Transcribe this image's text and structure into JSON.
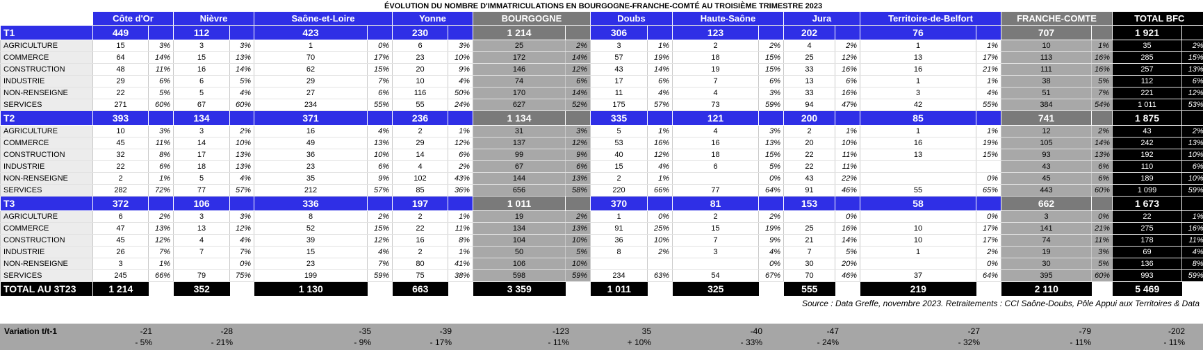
{
  "title": "ÉVOLUTION DU NOMBRE D'IMMATRICULATIONS EN BOURGOGNE-FRANCHE-COMTÉ AU TROISIÈME TRIMESTRE 2023",
  "headers": [
    "Côte d'Or",
    "Nièvre",
    "Saône-et-Loire",
    "Yonne",
    "BOURGOGNE",
    "Doubs",
    "Haute-Saône",
    "Jura",
    "Territoire-de-Belfort",
    "FRANCHE-COMTE",
    "TOTAL BFC"
  ],
  "quarters": [
    {
      "label": "T1",
      "totals": [
        "449",
        "112",
        "423",
        "230",
        "1 214",
        "306",
        "123",
        "202",
        "76",
        "707",
        "1 921"
      ],
      "rows": [
        {
          "label": "AGRICULTURE",
          "cells": [
            [
              "15",
              "3%"
            ],
            [
              "3",
              "3%"
            ],
            [
              "1",
              "0%"
            ],
            [
              "6",
              "3%"
            ],
            [
              "25",
              "2%"
            ],
            [
              "3",
              "1%"
            ],
            [
              "2",
              "2%"
            ],
            [
              "4",
              "2%"
            ],
            [
              "1",
              "1%"
            ],
            [
              "10",
              "1%"
            ],
            [
              "35",
              "2%"
            ]
          ]
        },
        {
          "label": "COMMERCE",
          "cells": [
            [
              "64",
              "14%"
            ],
            [
              "15",
              "13%"
            ],
            [
              "70",
              "17%"
            ],
            [
              "23",
              "10%"
            ],
            [
              "172",
              "14%"
            ],
            [
              "57",
              "19%"
            ],
            [
              "18",
              "15%"
            ],
            [
              "25",
              "12%"
            ],
            [
              "13",
              "17%"
            ],
            [
              "113",
              "16%"
            ],
            [
              "285",
              "15%"
            ]
          ]
        },
        {
          "label": "CONSTRUCTION",
          "cells": [
            [
              "48",
              "11%"
            ],
            [
              "16",
              "14%"
            ],
            [
              "62",
              "15%"
            ],
            [
              "20",
              "9%"
            ],
            [
              "146",
              "12%"
            ],
            [
              "43",
              "14%"
            ],
            [
              "19",
              "15%"
            ],
            [
              "33",
              "16%"
            ],
            [
              "16",
              "21%"
            ],
            [
              "111",
              "16%"
            ],
            [
              "257",
              "13%"
            ]
          ]
        },
        {
          "label": "INDUSTRIE",
          "cells": [
            [
              "29",
              "6%"
            ],
            [
              "6",
              "5%"
            ],
            [
              "29",
              "7%"
            ],
            [
              "10",
              "4%"
            ],
            [
              "74",
              "6%"
            ],
            [
              "17",
              "6%"
            ],
            [
              "7",
              "6%"
            ],
            [
              "13",
              "6%"
            ],
            [
              "1",
              "1%"
            ],
            [
              "38",
              "5%"
            ],
            [
              "112",
              "6%"
            ]
          ]
        },
        {
          "label": "NON-RENSEIGNE",
          "cells": [
            [
              "22",
              "5%"
            ],
            [
              "5",
              "4%"
            ],
            [
              "27",
              "6%"
            ],
            [
              "116",
              "50%"
            ],
            [
              "170",
              "14%"
            ],
            [
              "11",
              "4%"
            ],
            [
              "4",
              "3%"
            ],
            [
              "33",
              "16%"
            ],
            [
              "3",
              "4%"
            ],
            [
              "51",
              "7%"
            ],
            [
              "221",
              "12%"
            ]
          ]
        },
        {
          "label": "SERVICES",
          "cells": [
            [
              "271",
              "60%"
            ],
            [
              "67",
              "60%"
            ],
            [
              "234",
              "55%"
            ],
            [
              "55",
              "24%"
            ],
            [
              "627",
              "52%"
            ],
            [
              "175",
              "57%"
            ],
            [
              "73",
              "59%"
            ],
            [
              "94",
              "47%"
            ],
            [
              "42",
              "55%"
            ],
            [
              "384",
              "54%"
            ],
            [
              "1 011",
              "53%"
            ]
          ]
        }
      ]
    },
    {
      "label": "T2",
      "totals": [
        "393",
        "134",
        "371",
        "236",
        "1 134",
        "335",
        "121",
        "200",
        "85",
        "741",
        "1 875"
      ],
      "rows": [
        {
          "label": "AGRICULTURE",
          "cells": [
            [
              "10",
              "3%"
            ],
            [
              "3",
              "2%"
            ],
            [
              "16",
              "4%"
            ],
            [
              "2",
              "1%"
            ],
            [
              "31",
              "3%"
            ],
            [
              "5",
              "1%"
            ],
            [
              "4",
              "3%"
            ],
            [
              "2",
              "1%"
            ],
            [
              "1",
              "1%"
            ],
            [
              "12",
              "2%"
            ],
            [
              "43",
              "2%"
            ]
          ]
        },
        {
          "label": "COMMERCE",
          "cells": [
            [
              "45",
              "11%"
            ],
            [
              "14",
              "10%"
            ],
            [
              "49",
              "13%"
            ],
            [
              "29",
              "12%"
            ],
            [
              "137",
              "12%"
            ],
            [
              "53",
              "16%"
            ],
            [
              "16",
              "13%"
            ],
            [
              "20",
              "10%"
            ],
            [
              "16",
              "19%"
            ],
            [
              "105",
              "14%"
            ],
            [
              "242",
              "13%"
            ]
          ]
        },
        {
          "label": "CONSTRUCTION",
          "cells": [
            [
              "32",
              "8%"
            ],
            [
              "17",
              "13%"
            ],
            [
              "36",
              "10%"
            ],
            [
              "14",
              "6%"
            ],
            [
              "99",
              "9%"
            ],
            [
              "40",
              "12%"
            ],
            [
              "18",
              "15%"
            ],
            [
              "22",
              "11%"
            ],
            [
              "13",
              "15%"
            ],
            [
              "93",
              "13%"
            ],
            [
              "192",
              "10%"
            ]
          ]
        },
        {
          "label": "INDUSTRIE",
          "cells": [
            [
              "22",
              "6%"
            ],
            [
              "18",
              "13%"
            ],
            [
              "23",
              "6%"
            ],
            [
              "4",
              "2%"
            ],
            [
              "67",
              "6%"
            ],
            [
              "15",
              "4%"
            ],
            [
              "6",
              "5%"
            ],
            [
              "22",
              "11%"
            ],
            [
              "",
              ""
            ],
            [
              "43",
              "6%"
            ],
            [
              "110",
              "6%"
            ]
          ]
        },
        {
          "label": "NON-RENSEIGNE",
          "cells": [
            [
              "2",
              "1%"
            ],
            [
              "5",
              "4%"
            ],
            [
              "35",
              "9%"
            ],
            [
              "102",
              "43%"
            ],
            [
              "144",
              "13%"
            ],
            [
              "2",
              "1%"
            ],
            [
              "",
              "0%"
            ],
            [
              "43",
              "22%"
            ],
            [
              "",
              "0%"
            ],
            [
              "45",
              "6%"
            ],
            [
              "189",
              "10%"
            ]
          ]
        },
        {
          "label": "SERVICES",
          "cells": [
            [
              "282",
              "72%"
            ],
            [
              "77",
              "57%"
            ],
            [
              "212",
              "57%"
            ],
            [
              "85",
              "36%"
            ],
            [
              "656",
              "58%"
            ],
            [
              "220",
              "66%"
            ],
            [
              "77",
              "64%"
            ],
            [
              "91",
              "46%"
            ],
            [
              "55",
              "65%"
            ],
            [
              "443",
              "60%"
            ],
            [
              "1 099",
              "59%"
            ]
          ]
        }
      ]
    },
    {
      "label": "T3",
      "totals": [
        "372",
        "106",
        "336",
        "197",
        "1 011",
        "370",
        "81",
        "153",
        "58",
        "662",
        "1 673"
      ],
      "rows": [
        {
          "label": "AGRICULTURE",
          "cells": [
            [
              "6",
              "2%"
            ],
            [
              "3",
              "3%"
            ],
            [
              "8",
              "2%"
            ],
            [
              "2",
              "1%"
            ],
            [
              "19",
              "2%"
            ],
            [
              "1",
              "0%"
            ],
            [
              "2",
              "2%"
            ],
            [
              "",
              "0%"
            ],
            [
              "",
              "0%"
            ],
            [
              "3",
              "0%"
            ],
            [
              "22",
              "1%"
            ]
          ]
        },
        {
          "label": "COMMERCE",
          "cells": [
            [
              "47",
              "13%"
            ],
            [
              "13",
              "12%"
            ],
            [
              "52",
              "15%"
            ],
            [
              "22",
              "11%"
            ],
            [
              "134",
              "13%"
            ],
            [
              "91",
              "25%"
            ],
            [
              "15",
              "19%"
            ],
            [
              "25",
              "16%"
            ],
            [
              "10",
              "17%"
            ],
            [
              "141",
              "21%"
            ],
            [
              "275",
              "16%"
            ]
          ]
        },
        {
          "label": "CONSTRUCTION",
          "cells": [
            [
              "45",
              "12%"
            ],
            [
              "4",
              "4%"
            ],
            [
              "39",
              "12%"
            ],
            [
              "16",
              "8%"
            ],
            [
              "104",
              "10%"
            ],
            [
              "36",
              "10%"
            ],
            [
              "7",
              "9%"
            ],
            [
              "21",
              "14%"
            ],
            [
              "10",
              "17%"
            ],
            [
              "74",
              "11%"
            ],
            [
              "178",
              "11%"
            ]
          ]
        },
        {
          "label": "INDUSTRIE",
          "cells": [
            [
              "26",
              "7%"
            ],
            [
              "7",
              "7%"
            ],
            [
              "15",
              "4%"
            ],
            [
              "2",
              "1%"
            ],
            [
              "50",
              "5%"
            ],
            [
              "8",
              "2%"
            ],
            [
              "3",
              "4%"
            ],
            [
              "7",
              "5%"
            ],
            [
              "1",
              "2%"
            ],
            [
              "19",
              "3%"
            ],
            [
              "69",
              "4%"
            ]
          ]
        },
        {
          "label": "NON-RENSEIGNE",
          "cells": [
            [
              "3",
              "1%"
            ],
            [
              "",
              "0%"
            ],
            [
              "23",
              "7%"
            ],
            [
              "80",
              "41%"
            ],
            [
              "106",
              "10%"
            ],
            [
              "",
              ""
            ],
            [
              "",
              "0%"
            ],
            [
              "30",
              "20%"
            ],
            [
              "",
              "0%"
            ],
            [
              "30",
              "5%"
            ],
            [
              "136",
              "8%"
            ]
          ]
        },
        {
          "label": "SERVICES",
          "cells": [
            [
              "245",
              "66%"
            ],
            [
              "79",
              "75%"
            ],
            [
              "199",
              "59%"
            ],
            [
              "75",
              "38%"
            ],
            [
              "598",
              "59%"
            ],
            [
              "234",
              "63%"
            ],
            [
              "54",
              "67%"
            ],
            [
              "70",
              "46%"
            ],
            [
              "37",
              "64%"
            ],
            [
              "395",
              "60%"
            ],
            [
              "993",
              "59%"
            ]
          ]
        }
      ]
    }
  ],
  "total": {
    "label": "TOTAL AU 3T23",
    "values": [
      "1 214",
      "352",
      "1 130",
      "663",
      "3 359",
      "1 011",
      "325",
      "555",
      "219",
      "2 110",
      "5 469"
    ]
  },
  "source": "Source : Data Greffe, novembre 2023. Retraitements : CCI Saône-Doubs, Pôle Appui aux Territoires & Data",
  "variation": {
    "label": "Variation t/t-1",
    "values": [
      {
        "abs": "-21",
        "pct": "- 5%"
      },
      {
        "abs": "-28",
        "pct": "- 21%"
      },
      {
        "abs": "-35",
        "pct": "- 9%"
      },
      {
        "abs": "-39",
        "pct": "- 17%"
      },
      {
        "abs": "-123",
        "pct": "- 11%"
      },
      {
        "abs": "35",
        "pct": "+ 10%"
      },
      {
        "abs": "-40",
        "pct": "- 33%"
      },
      {
        "abs": "-47",
        "pct": "- 24%"
      },
      {
        "abs": "-27",
        "pct": "- 32%"
      },
      {
        "abs": "-79",
        "pct": "- 11%"
      },
      {
        "abs": "-202",
        "pct": "- 11%"
      }
    ]
  }
}
